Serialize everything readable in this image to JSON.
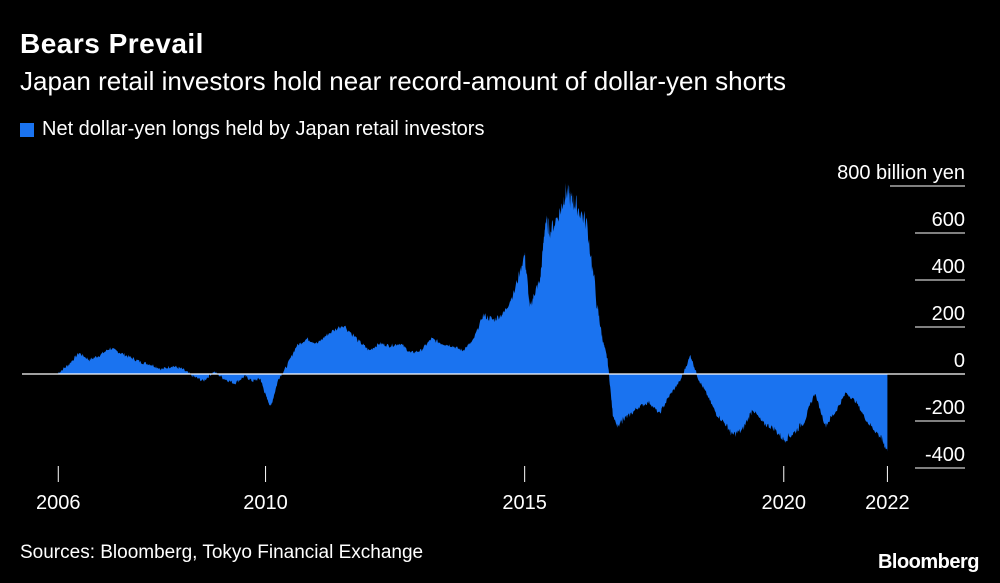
{
  "header": {
    "title": "Bears Prevail",
    "subtitle": "Japan retail investors hold near record-amount of dollar-yen shorts"
  },
  "legend": {
    "label": "Net dollar-yen longs held by Japan retail investors"
  },
  "footer": {
    "source": "Sources: Bloomberg, Tokyo Financial Exchange",
    "brand": "Bloomberg"
  },
  "colors": {
    "series": "#1a73f0",
    "background": "#000000",
    "text": "#ffffff",
    "zero_line": "#ffffff"
  },
  "chart_data": {
    "type": "area",
    "title": "Bears Prevail",
    "subtitle": "Japan retail investors hold near record-amount of dollar-yen shorts",
    "ylabel": "800 billion yen",
    "ylim": [
      -450,
      800
    ],
    "yticks": [
      -400,
      -200,
      0,
      200,
      400,
      600,
      800
    ],
    "ytick_labels": [
      "-400",
      "-200",
      "0",
      "200",
      "400",
      "600",
      "800 billion yen"
    ],
    "xticks": [
      2006,
      2010,
      2015,
      2020,
      2022
    ],
    "xtick_labels": [
      "2006",
      "2010",
      "2015",
      "2020",
      "2022"
    ],
    "legend_position": "top-left",
    "grid": "horizontal",
    "series": [
      {
        "name": "Net dollar-yen longs held by Japan retail investors",
        "x": [
          2006.0,
          2006.2,
          2006.4,
          2006.6,
          2006.8,
          2007.0,
          2007.2,
          2007.4,
          2007.6,
          2007.8,
          2008.0,
          2008.2,
          2008.4,
          2008.6,
          2008.8,
          2009.0,
          2009.2,
          2009.4,
          2009.6,
          2009.75,
          2009.9,
          2010.0,
          2010.1,
          2010.25,
          2010.4,
          2010.6,
          2010.8,
          2011.0,
          2011.2,
          2011.5,
          2011.8,
          2012.0,
          2012.2,
          2012.4,
          2012.6,
          2012.8,
          2013.0,
          2013.2,
          2013.4,
          2013.6,
          2013.8,
          2014.0,
          2014.2,
          2014.4,
          2014.6,
          2014.8,
          2015.0,
          2015.1,
          2015.2,
          2015.3,
          2015.4,
          2015.5,
          2015.7,
          2015.8,
          2015.9,
          2016.0,
          2016.2,
          2016.4,
          2016.5,
          2016.6,
          2016.7,
          2016.8,
          2016.9,
          2017.0,
          2017.2,
          2017.4,
          2017.6,
          2017.8,
          2018.0,
          2018.2,
          2018.35,
          2018.5,
          2018.7,
          2018.9,
          2019.0,
          2019.2,
          2019.4,
          2019.6,
          2019.8,
          2020.0,
          2020.2,
          2020.4,
          2020.6,
          2020.8,
          2021.0,
          2021.2,
          2021.4,
          2021.6,
          2021.8,
          2021.9,
          2022.0
        ],
        "values": [
          5,
          40,
          90,
          60,
          80,
          110,
          90,
          70,
          50,
          40,
          20,
          35,
          20,
          -10,
          -30,
          10,
          -20,
          -40,
          -10,
          -30,
          -20,
          -90,
          -140,
          -20,
          30,
          120,
          150,
          130,
          170,
          210,
          140,
          100,
          130,
          120,
          130,
          90,
          100,
          150,
          130,
          120,
          100,
          140,
          250,
          230,
          260,
          350,
          510,
          280,
          350,
          400,
          650,
          610,
          700,
          780,
          740,
          720,
          640,
          290,
          150,
          60,
          -170,
          -230,
          -190,
          -180,
          -140,
          -120,
          -170,
          -90,
          -30,
          80,
          -20,
          -80,
          -170,
          -220,
          -260,
          -240,
          -150,
          -210,
          -230,
          -280,
          -250,
          -200,
          -80,
          -220,
          -160,
          -80,
          -120,
          -200,
          -250,
          -280,
          -330
        ]
      }
    ]
  }
}
